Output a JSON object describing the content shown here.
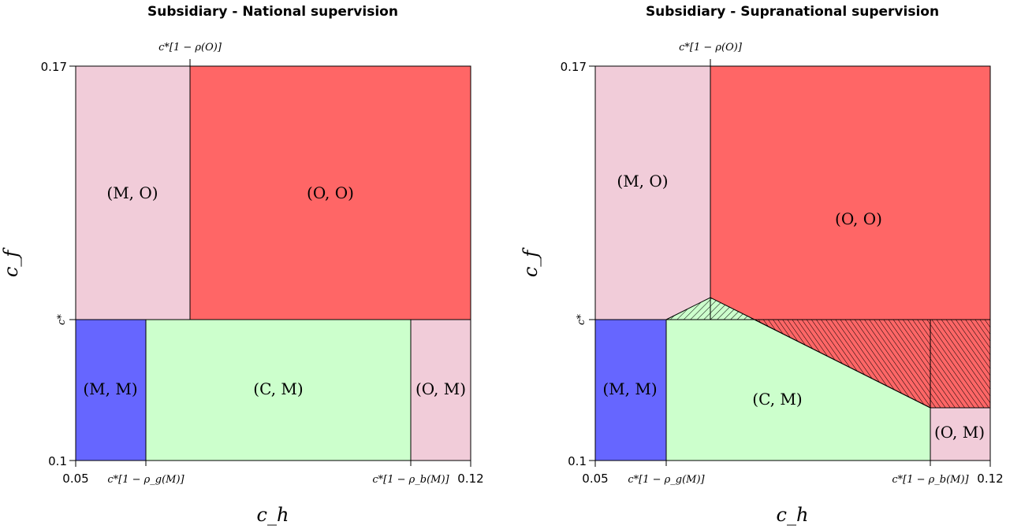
{
  "colors": {
    "MO": "#f1ccd9",
    "OO": "#ff6666",
    "MM": "#6666ff",
    "CM": "#ccffcc",
    "OM": "#f1ccd9"
  },
  "chart_data": [
    {
      "type": "area",
      "title": "Subsidiary - National supervision",
      "xlabel": "c_h",
      "ylabel": "c_f",
      "xlim": [
        0.05,
        0.12
      ],
      "ylim": [
        0.1,
        0.17
      ],
      "x_tick_labels": [
        "0.05",
        "c*[1 − ρ_g(M)]",
        "c*[1 − ρ_b(M)]",
        "0.12"
      ],
      "y_tick_labels": [
        "0.1",
        "c*",
        "0.17"
      ],
      "top_annotation": "c*[1 − ρ(O)]",
      "regions": [
        {
          "label": "(M, O)",
          "color_key": "MO"
        },
        {
          "label": "(O, O)",
          "color_key": "OO"
        },
        {
          "label": "(M, M)",
          "color_key": "MM"
        },
        {
          "label": "(C, M)",
          "color_key": "CM"
        },
        {
          "label": "(O, M)",
          "color_key": "OM"
        }
      ]
    },
    {
      "type": "area",
      "title": "Subsidiary - Supranational supervision",
      "xlabel": "c_h",
      "ylabel": "c_f",
      "xlim": [
        0.05,
        0.12
      ],
      "ylim": [
        0.1,
        0.17
      ],
      "x_tick_labels": [
        "0.05",
        "c*[1 − ρ_g(M)]",
        "c*[1 − ρ_b(M)]",
        "0.12"
      ],
      "y_tick_labels": [
        "0.1",
        "c*",
        "0.17"
      ],
      "top_annotation": "c*[1 − ρ(O)]",
      "grid": false,
      "hatched_regions": 2,
      "regions": [
        {
          "label": "(M, O)",
          "color_key": "MO"
        },
        {
          "label": "(O, O)",
          "color_key": "OO"
        },
        {
          "label": "(M, M)",
          "color_key": "MM"
        },
        {
          "label": "(C, M)",
          "color_key": "CM"
        },
        {
          "label": "(O, M)",
          "color_key": "OM"
        }
      ]
    }
  ]
}
